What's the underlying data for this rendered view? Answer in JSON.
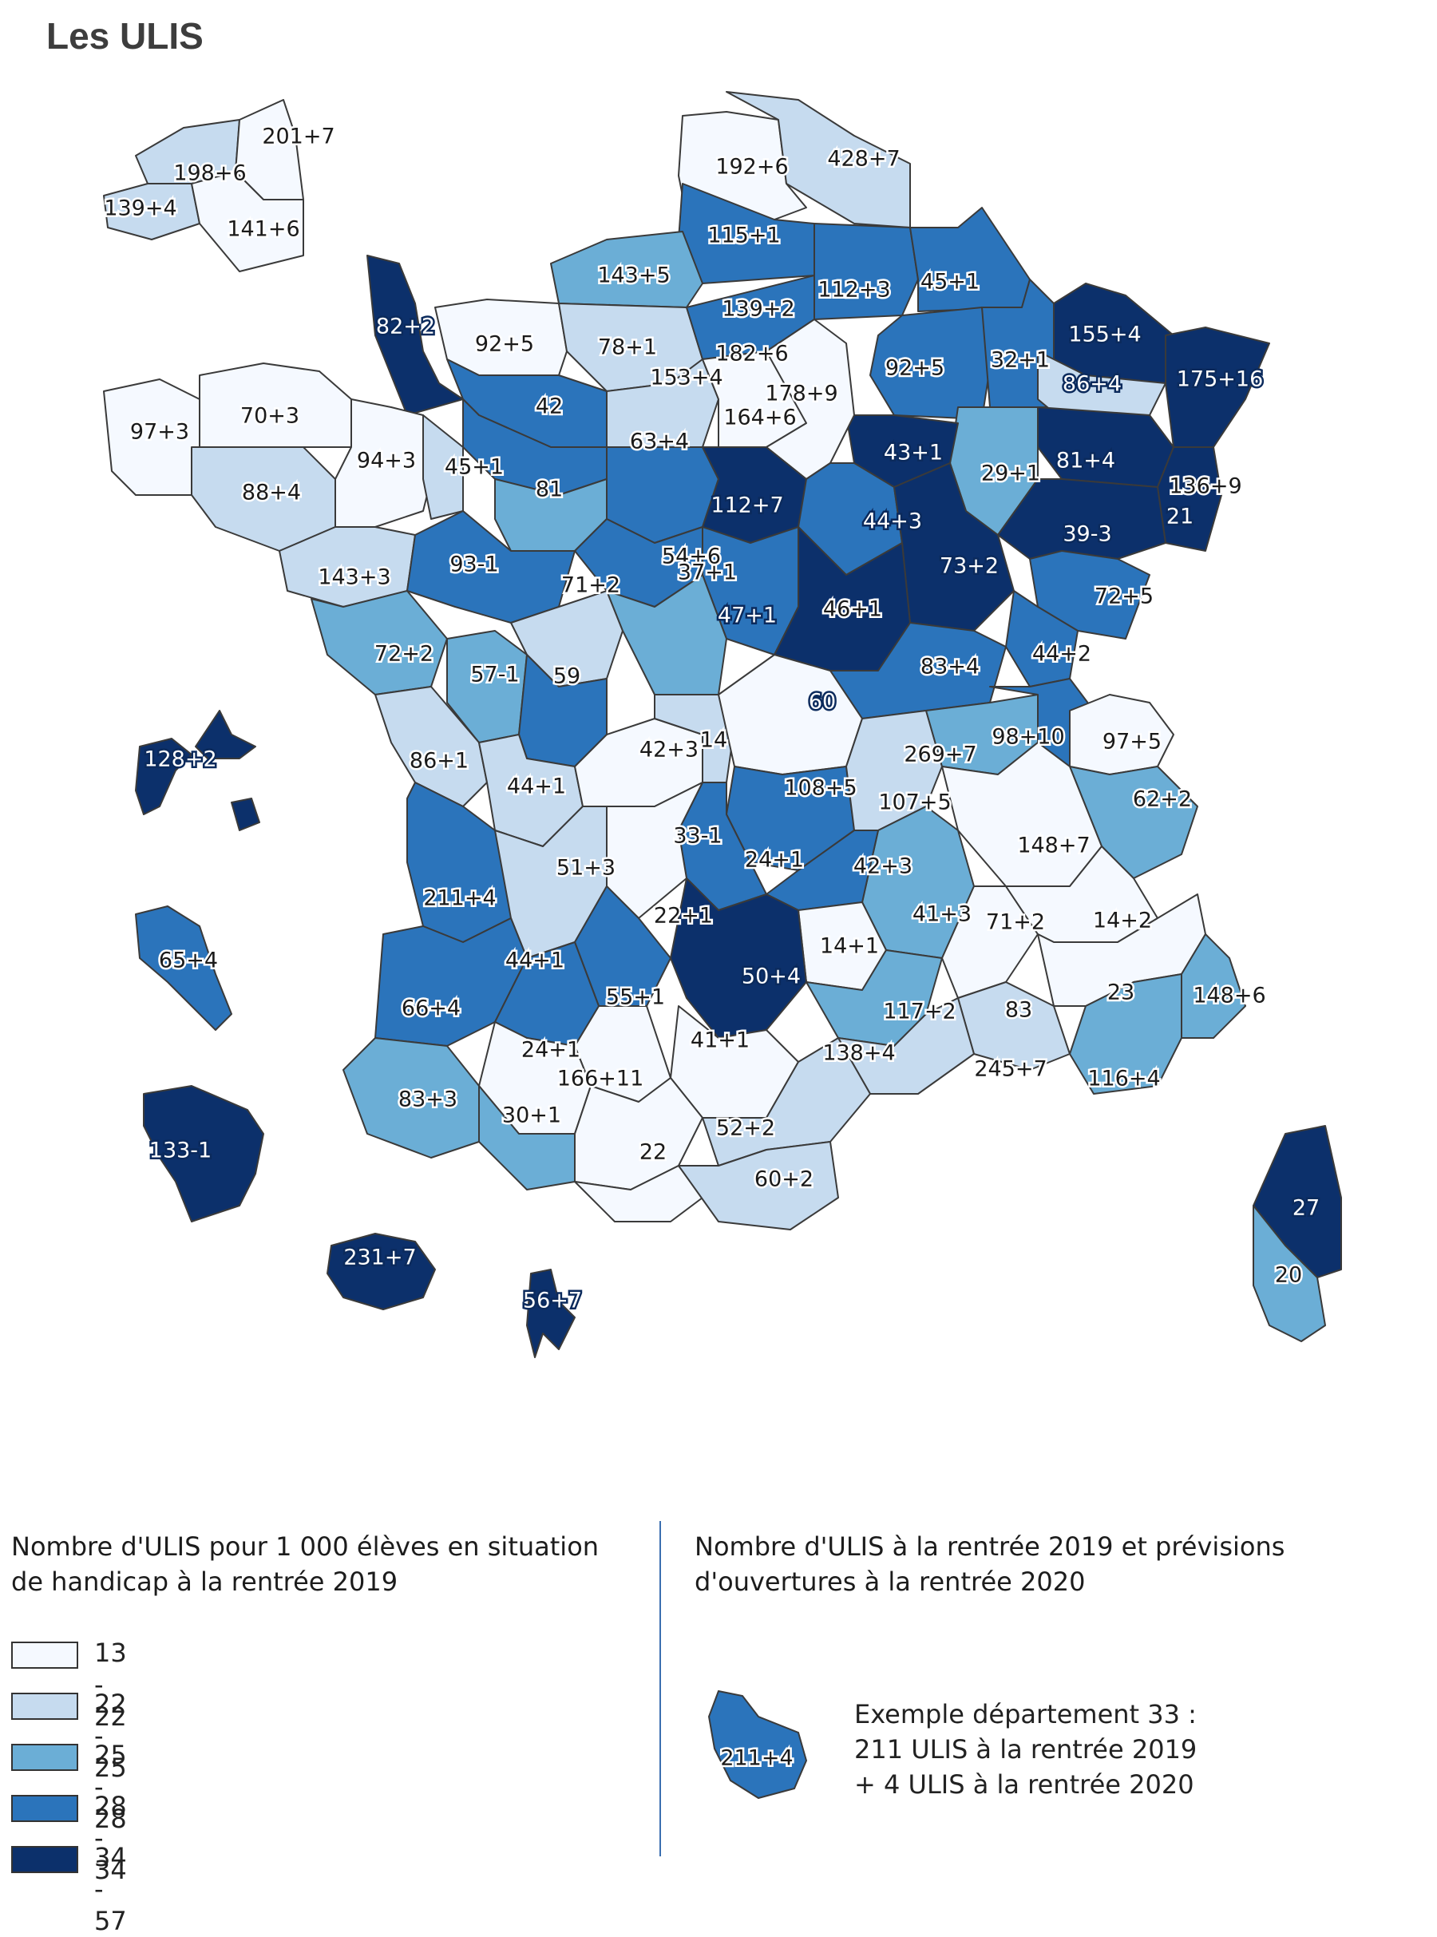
{
  "title": "Les ULIS",
  "legend": {
    "left_title": "Nombre d'ULIS pour 1 000 élèves en situation de handicap à la rentrée 2019",
    "right_title": "Nombre d'ULIS à la rentrée 2019 et prévisions d'ouvertures à la rentrée 2020",
    "classes": [
      {
        "label": "13 - 22",
        "color": "#f5f9ff"
      },
      {
        "label": "22 - 25",
        "color": "#c6dbef"
      },
      {
        "label": "25 - 28",
        "color": "#6baed6"
      },
      {
        "label": "28 - 34",
        "color": "#2b74bb"
      },
      {
        "label": "34 - 57",
        "color": "#0c306b"
      }
    ],
    "example_label": "211+4",
    "example_lines": [
      "Exemple département 33 :",
      "211 ULIS à la rentrée 2019",
      "+ 4 ULIS à la rentrée 2020"
    ]
  },
  "labels": [
    "201+7",
    "198+6",
    "139+4",
    "141+6",
    "192+6",
    "428+7",
    "115+1",
    "143+5",
    "112+3",
    "45+1",
    "139+2",
    "82+2",
    "92+5",
    "78+1",
    "182+6",
    "155+4",
    "153+4",
    "178+9",
    "92+5",
    "32+1",
    "175+16",
    "86+4",
    "70+3",
    "97+3",
    "42",
    "63+4",
    "164+6",
    "43+1",
    "94+3",
    "45+1",
    "81",
    "29+1",
    "81+4",
    "136+9",
    "88+4",
    "112+7",
    "44+3",
    "21",
    "39-3",
    "93-1",
    "54+6",
    "37+1",
    "73+2",
    "143+3",
    "71+2",
    "47+1",
    "46+1",
    "72+5",
    "72+2",
    "57-1",
    "59",
    "83+4",
    "44+2",
    "60",
    "128+2",
    "98+10",
    "97+5",
    "86+1",
    "42+3",
    "14",
    "269+7",
    "62+2",
    "44+1",
    "108+5",
    "107+5",
    "33-1",
    "148+7",
    "51+3",
    "24+1",
    "42+3",
    "211+4",
    "22+1",
    "41+3",
    "71+2",
    "14+2",
    "65+4",
    "44+1",
    "14+1",
    "50+4",
    "23",
    "148+6",
    "66+4",
    "55+1",
    "117+2",
    "83",
    "41+1",
    "24+1",
    "138+4",
    "245+7",
    "166+11",
    "116+4",
    "83+3",
    "30+1",
    "52+2",
    "22",
    "60+2",
    "27",
    "133-1",
    "20",
    "231+7",
    "56+7"
  ]
}
